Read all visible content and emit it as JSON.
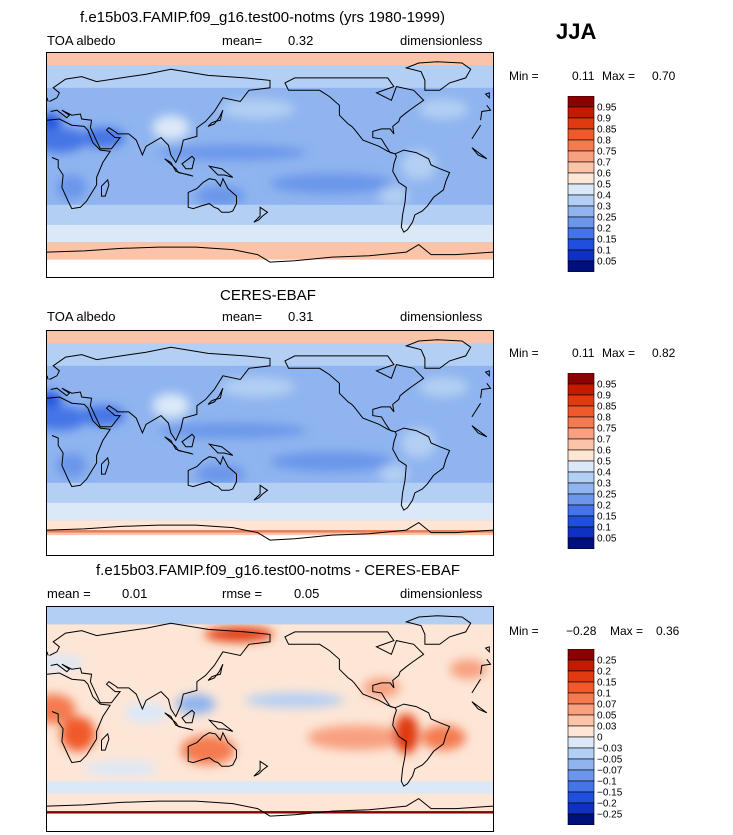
{
  "season": "JJA",
  "panels": [
    {
      "title": "f.e15b03.FAMIP.f09_g16.test00-notms (yrs 1980-1999)",
      "left_label": "TOA albedo",
      "mid_label": "mean=",
      "mid_value": "0.32",
      "right_label": "dimensionless",
      "min_label": "Min =",
      "min_value": "0.11",
      "max_label": "Max =",
      "max_value": "0.70",
      "colorbar": {
        "labels": [
          "0.95",
          "0.9",
          "0.85",
          "0.8",
          "0.75",
          "0.7",
          "0.6",
          "0.5",
          "0.4",
          "0.3",
          "0.25",
          "0.2",
          "0.15",
          "0.1",
          "0.05"
        ],
        "colors": [
          "#8b0000",
          "#c41a00",
          "#e03a10",
          "#f05a2a",
          "#f47a50",
          "#f8a080",
          "#fbc4a8",
          "#fde6d6",
          "#dbe8f8",
          "#b3cff3",
          "#8fb4ef",
          "#6b96ea",
          "#4474e6",
          "#1f4fdc",
          "#1030c0",
          "#00107a"
        ]
      }
    },
    {
      "title": "CERES-EBAF",
      "left_label": "TOA albedo",
      "mid_label": "mean=",
      "mid_value": "0.31",
      "right_label": "dimensionless",
      "min_label": "Min =",
      "min_value": "0.11",
      "max_label": "Max =",
      "max_value": "0.82",
      "colorbar": {
        "labels": [
          "0.95",
          "0.9",
          "0.85",
          "0.8",
          "0.75",
          "0.7",
          "0.6",
          "0.5",
          "0.4",
          "0.3",
          "0.25",
          "0.2",
          "0.15",
          "0.1",
          "0.05"
        ],
        "colors": [
          "#8b0000",
          "#c41a00",
          "#e03a10",
          "#f05a2a",
          "#f47a50",
          "#f8a080",
          "#fbc4a8",
          "#fde6d6",
          "#dbe8f8",
          "#b3cff3",
          "#8fb4ef",
          "#6b96ea",
          "#4474e6",
          "#1f4fdc",
          "#1030c0",
          "#00107a"
        ]
      }
    },
    {
      "title": "f.e15b03.FAMIP.f09_g16.test00-notms - CERES-EBAF",
      "left_label": "mean =",
      "left_value": "0.01",
      "mid_label": "rmse =",
      "mid_value": "0.05",
      "right_label": "dimensionless",
      "min_label": "Min =",
      "min_value": "−0.28",
      "max_label": "Max =",
      "max_value": "0.36",
      "colorbar": {
        "labels": [
          "0.25",
          "0.2",
          "0.15",
          "0.1",
          "0.07",
          "0.05",
          "0.03",
          "0",
          "−0.03",
          "−0.05",
          "−0.07",
          "−0.1",
          "−0.15",
          "−0.2",
          "−0.25"
        ],
        "colors": [
          "#8b0000",
          "#c41a00",
          "#e03a10",
          "#f05a2a",
          "#f47a50",
          "#f8a080",
          "#fbc4a8",
          "#fde6d6",
          "#dbe8f8",
          "#b3cff3",
          "#8fb4ef",
          "#6b96ea",
          "#4474e6",
          "#1f4fdc",
          "#1030c0",
          "#00107a"
        ]
      }
    }
  ],
  "chart_data": [
    {
      "type": "heatmap",
      "title": "f.e15b03.FAMIP.f09_g16.test00-notms (yrs 1980-1999)",
      "variable": "TOA albedo",
      "units": "dimensionless",
      "mean": 0.32,
      "min": 0.11,
      "max": 0.7,
      "contour_levels": [
        0.05,
        0.1,
        0.15,
        0.2,
        0.25,
        0.3,
        0.4,
        0.5,
        0.6,
        0.7,
        0.75,
        0.8,
        0.85,
        0.9,
        0.95
      ]
    },
    {
      "type": "heatmap",
      "title": "CERES-EBAF",
      "variable": "TOA albedo",
      "units": "dimensionless",
      "mean": 0.31,
      "min": 0.11,
      "max": 0.82,
      "contour_levels": [
        0.05,
        0.1,
        0.15,
        0.2,
        0.25,
        0.3,
        0.4,
        0.5,
        0.6,
        0.7,
        0.75,
        0.8,
        0.85,
        0.9,
        0.95
      ]
    },
    {
      "type": "heatmap",
      "title": "f.e15b03.FAMIP.f09_g16.test00-notms - CERES-EBAF",
      "units": "dimensionless",
      "mean": 0.01,
      "rmse": 0.05,
      "min": -0.28,
      "max": 0.36,
      "contour_levels": [
        -0.25,
        -0.2,
        -0.15,
        -0.1,
        -0.07,
        -0.05,
        -0.03,
        0,
        0.03,
        0.05,
        0.07,
        0.1,
        0.15,
        0.2,
        0.25
      ]
    }
  ]
}
